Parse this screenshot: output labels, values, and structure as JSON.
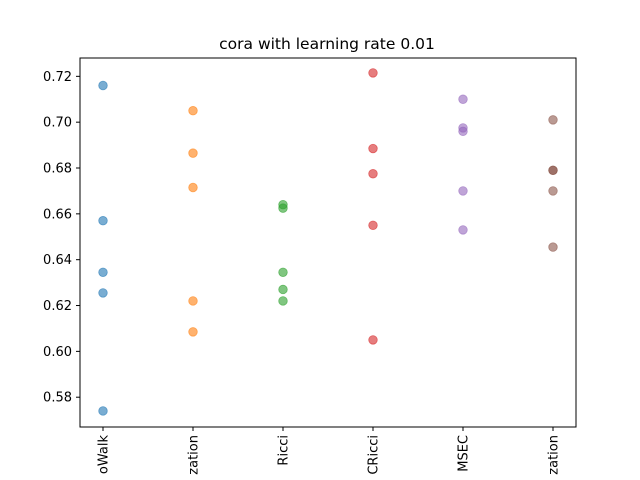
{
  "chart_data": {
    "type": "scatter",
    "title": "cora with learning rate 0.01",
    "xlabel": "",
    "ylabel": "",
    "categories": [
      "oWalk",
      "zation",
      "Ricci",
      "CRicci",
      "MSEC",
      "zation"
    ],
    "ylim": [
      0.567,
      0.728
    ],
    "yticks": [
      "0.58",
      "0.60",
      "0.62",
      "0.64",
      "0.66",
      "0.68",
      "0.70",
      "0.72"
    ],
    "grid": false,
    "series": [
      {
        "values": [
          0.716,
          0.657,
          0.6345,
          0.6255,
          0.574
        ],
        "color": "#1f77b4"
      },
      {
        "values": [
          0.705,
          0.6865,
          0.6715,
          0.622,
          0.6085
        ],
        "color": "#ff7f0e"
      },
      {
        "values": [
          0.664,
          0.6625,
          0.6345,
          0.627,
          0.622
        ],
        "color": "#2ca02c"
      },
      {
        "values": [
          0.7215,
          0.6885,
          0.6775,
          0.655,
          0.605
        ],
        "color": "#d62728"
      },
      {
        "values": [
          0.71,
          0.6975,
          0.696,
          0.67,
          0.653
        ],
        "color": "#9467bd"
      },
      {
        "values": [
          0.701,
          0.679,
          0.679,
          0.67,
          0.6455
        ],
        "color": "#8c564b"
      }
    ]
  }
}
